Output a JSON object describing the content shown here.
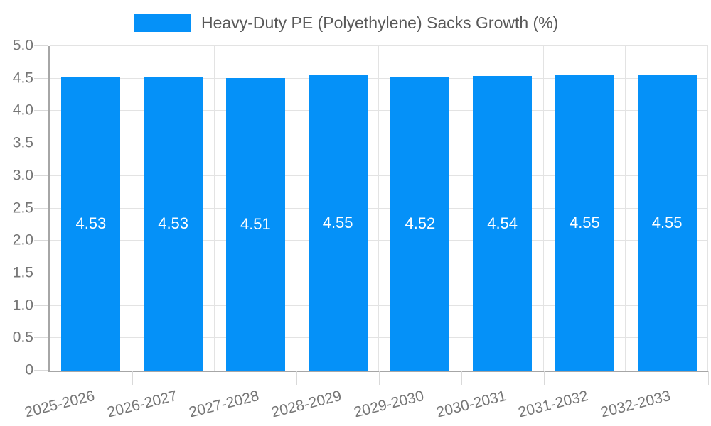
{
  "chart_data": {
    "type": "bar",
    "title": "Heavy-Duty PE (Polyethylene) Sacks Growth (%)",
    "legend": {
      "label": "Heavy-Duty PE (Polyethylene) Sacks Growth (%)",
      "position": "top-center",
      "swatch": "blue-rect"
    },
    "categories": [
      "2025-2026",
      "2026-2027",
      "2027-2028",
      "2028-2029",
      "2029-2030",
      "2030-2031",
      "2031-2032",
      "2032-2033"
    ],
    "series": [
      {
        "name": "Heavy-Duty PE (Polyethylene) Sacks Growth (%)",
        "values": [
          4.53,
          4.53,
          4.51,
          4.55,
          4.52,
          4.54,
          4.55,
          4.55
        ]
      }
    ],
    "value_label_decimals": 2,
    "xlabel": "",
    "ylabel": "",
    "ylim": [
      0,
      5
    ],
    "yticks": [
      {
        "value": 5.0,
        "label": "5.0"
      },
      {
        "value": 4.5,
        "label": "4.5"
      },
      {
        "value": 4.0,
        "label": "4.0"
      },
      {
        "value": 3.5,
        "label": "3.5"
      },
      {
        "value": 3.0,
        "label": "3.0"
      },
      {
        "value": 2.5,
        "label": "2.5"
      },
      {
        "value": 2.0,
        "label": "2.0"
      },
      {
        "value": 1.5,
        "label": "1.5"
      },
      {
        "value": 1.0,
        "label": "1.0"
      },
      {
        "value": 0.5,
        "label": "0.5"
      },
      {
        "value": 0,
        "label": "0"
      }
    ],
    "grid": true,
    "x_label_rotation_deg": -14,
    "bar_width_fraction": 0.717,
    "colors": {
      "bar": "#0591f8",
      "grid": "#e3e3e3",
      "tick": "#d9d9d9",
      "axis": "#a6a6a6",
      "tick_label": "#767676",
      "value_label": "#ffffff",
      "legend_text": "#595959",
      "background": "#ffffff"
    }
  }
}
